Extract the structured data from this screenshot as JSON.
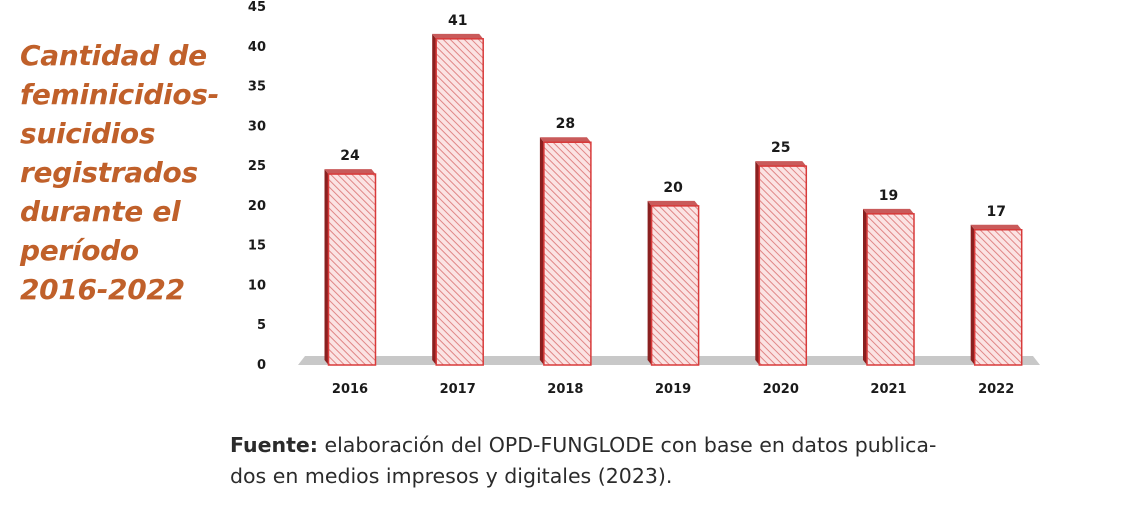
{
  "side_title": {
    "lines": [
      "Cantidad de",
      "feminicidios-",
      "suicidios",
      "registrados",
      "durante el",
      "período",
      "2016-2022"
    ]
  },
  "chart_data": {
    "type": "bar",
    "categories": [
      "2016",
      "2017",
      "2018",
      "2019",
      "2020",
      "2021",
      "2022"
    ],
    "values": [
      24,
      41,
      28,
      20,
      25,
      19,
      17
    ],
    "title": "",
    "xlabel": "",
    "ylabel": "",
    "ylim": [
      0,
      45
    ],
    "yticks": [
      "0",
      "5",
      "10",
      "15",
      "20",
      "25",
      "30",
      "35",
      "40",
      "45"
    ],
    "grid": false,
    "legend": "none",
    "data_labels": true,
    "style": "3d-hatched",
    "colors": {
      "bar_fill": "#fbe3e3",
      "bar_hatch": "#e08686",
      "bar_edge": "#d83a3a",
      "bar_side": "#8a2020",
      "bar_top": "#c95a5a",
      "floor": "#c8c8c8"
    }
  },
  "caption": {
    "bold": "Fuente:",
    "line1": " elaboración del OPD-FUNGLODE con base en datos publica-",
    "line2": "dos en medios impresos y digitales (2023)."
  }
}
